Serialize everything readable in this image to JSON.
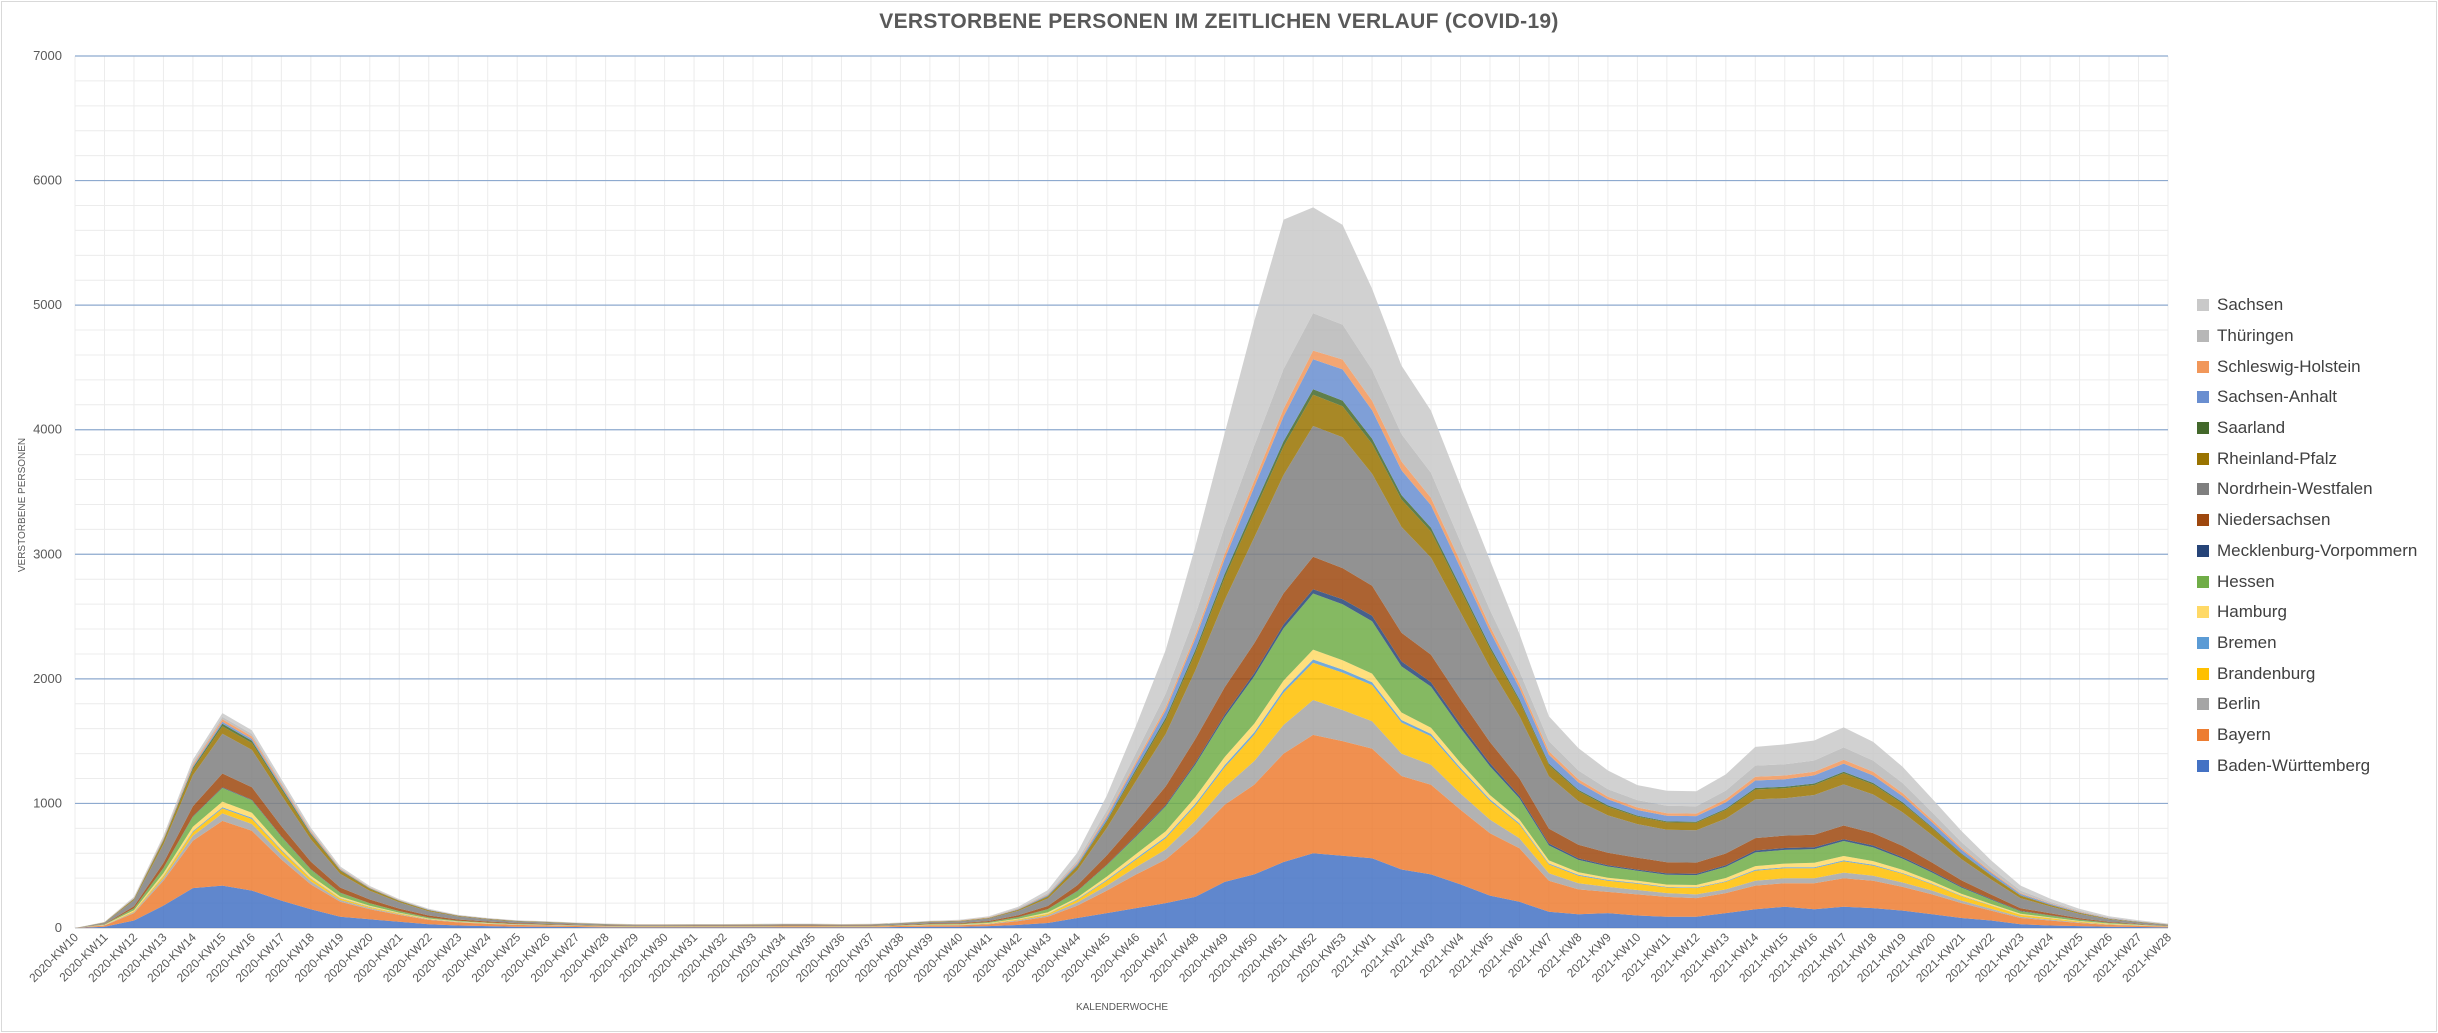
{
  "chart_data": {
    "type": "area",
    "stacked": true,
    "title": "VERSTORBENE PERSONEN IM ZEITLICHEN VERLAUF (COVID-19)",
    "xlabel": "KALENDERWOCHE",
    "ylabel": "VERSTORBENE PERSONEN",
    "ylim": [
      0,
      7000
    ],
    "yticks": [
      0,
      1000,
      2000,
      3000,
      4000,
      5000,
      6000,
      7000
    ],
    "grid": true,
    "legend_position": "right",
    "categories": [
      "2020-KW10",
      "2020-KW11",
      "2020-KW12",
      "2020-KW13",
      "2020-KW14",
      "2020-KW15",
      "2020-KW16",
      "2020-KW17",
      "2020-KW18",
      "2020-KW19",
      "2020-KW20",
      "2020-KW21",
      "2020-KW22",
      "2020-KW23",
      "2020-KW24",
      "2020-KW25",
      "2020-KW26",
      "2020-KW27",
      "2020-KW28",
      "2020-KW29",
      "2020-KW30",
      "2020-KW31",
      "2020-KW32",
      "2020-KW33",
      "2020-KW34",
      "2020-KW35",
      "2020-KW36",
      "2020-KW37",
      "2020-KW38",
      "2020-KW39",
      "2020-KW40",
      "2020-KW41",
      "2020-KW42",
      "2020-KW43",
      "2020-KW44",
      "2020-KW45",
      "2020-KW46",
      "2020-KW47",
      "2020-KW48",
      "2020-KW49",
      "2020-KW50",
      "2020-KW51",
      "2020-KW52",
      "2020-KW53",
      "2021-KW1",
      "2021-KW2",
      "2021-KW3",
      "2021-KW4",
      "2021-KW5",
      "2021-KW6",
      "2021-KW7",
      "2021-KW8",
      "2021-KW9",
      "2021-KW10",
      "2021-KW11",
      "2021-KW12",
      "2021-KW13",
      "2021-KW14",
      "2021-KW15",
      "2021-KW16",
      "2021-KW17",
      "2021-KW18",
      "2021-KW19",
      "2021-KW20",
      "2021-KW21",
      "2021-KW22",
      "2021-KW23",
      "2021-KW24",
      "2021-KW25",
      "2021-KW26",
      "2021-KW27",
      "2021-KW28"
    ],
    "series": [
      {
        "name": "Baden-Württemberg",
        "color": "#4472c4",
        "values": [
          0,
          10,
          60,
          180,
          320,
          340,
          300,
          220,
          150,
          90,
          70,
          50,
          30,
          20,
          15,
          10,
          10,
          8,
          5,
          5,
          5,
          5,
          5,
          5,
          5,
          5,
          5,
          5,
          8,
          10,
          10,
          15,
          25,
          40,
          80,
          120,
          160,
          200,
          250,
          370,
          430,
          530,
          600,
          580,
          560,
          470,
          430,
          350,
          260,
          210,
          130,
          110,
          120,
          100,
          90,
          90,
          120,
          150,
          170,
          150,
          170,
          160,
          140,
          110,
          80,
          60,
          30,
          20,
          15,
          10,
          8,
          5
        ]
      },
      {
        "name": "Bayern",
        "color": "#ed7d31",
        "values": [
          0,
          10,
          60,
          200,
          380,
          520,
          480,
          330,
          200,
          120,
          80,
          55,
          35,
          25,
          18,
          15,
          10,
          8,
          6,
          5,
          5,
          6,
          6,
          6,
          7,
          7,
          6,
          6,
          8,
          10,
          12,
          15,
          30,
          50,
          100,
          180,
          270,
          350,
          500,
          620,
          720,
          870,
          950,
          920,
          880,
          750,
          720,
          600,
          500,
          430,
          250,
          200,
          170,
          170,
          160,
          150,
          160,
          190,
          190,
          210,
          230,
          220,
          190,
          160,
          120,
          80,
          50,
          40,
          25,
          15,
          10,
          6
        ]
      },
      {
        "name": "Berlin",
        "color": "#a5a5a5",
        "values": [
          0,
          2,
          8,
          20,
          40,
          60,
          55,
          40,
          25,
          15,
          10,
          6,
          4,
          3,
          2,
          2,
          2,
          1,
          1,
          1,
          1,
          1,
          1,
          1,
          1,
          1,
          1,
          1,
          1,
          2,
          2,
          4,
          8,
          12,
          25,
          40,
          60,
          80,
          110,
          140,
          190,
          230,
          280,
          250,
          220,
          180,
          160,
          130,
          110,
          80,
          60,
          50,
          40,
          35,
          30,
          30,
          30,
          40,
          40,
          40,
          45,
          40,
          35,
          30,
          20,
          15,
          10,
          8,
          5,
          3,
          2,
          1
        ]
      },
      {
        "name": "Brandenburg",
        "color": "#ffc000",
        "values": [
          0,
          1,
          5,
          15,
          30,
          40,
          40,
          30,
          20,
          12,
          8,
          5,
          3,
          2,
          2,
          1,
          1,
          1,
          1,
          1,
          1,
          1,
          1,
          1,
          1,
          1,
          1,
          1,
          1,
          2,
          2,
          3,
          5,
          10,
          20,
          40,
          60,
          90,
          120,
          160,
          210,
          260,
          300,
          300,
          290,
          250,
          230,
          190,
          150,
          110,
          70,
          60,
          50,
          50,
          45,
          50,
          60,
          80,
          80,
          80,
          90,
          80,
          70,
          50,
          35,
          25,
          15,
          10,
          6,
          4,
          2,
          1
        ]
      },
      {
        "name": "Bremen",
        "color": "#5b9bd5",
        "values": [
          0,
          1,
          2,
          5,
          8,
          10,
          10,
          8,
          5,
          3,
          2,
          2,
          1,
          1,
          1,
          1,
          1,
          1,
          1,
          0,
          0,
          0,
          0,
          0,
          0,
          0,
          0,
          0,
          0,
          1,
          1,
          1,
          2,
          3,
          5,
          8,
          10,
          12,
          15,
          18,
          20,
          22,
          25,
          24,
          22,
          20,
          18,
          15,
          12,
          10,
          8,
          7,
          6,
          6,
          5,
          5,
          6,
          7,
          7,
          8,
          8,
          7,
          6,
          5,
          4,
          3,
          2,
          2,
          1,
          1,
          1,
          0
        ]
      },
      {
        "name": "Hamburg",
        "color": "#ffd966",
        "values": [
          0,
          2,
          8,
          20,
          35,
          45,
          40,
          30,
          20,
          12,
          8,
          5,
          3,
          2,
          2,
          1,
          1,
          1,
          1,
          1,
          1,
          1,
          1,
          1,
          1,
          1,
          1,
          1,
          1,
          2,
          2,
          3,
          5,
          10,
          15,
          25,
          35,
          45,
          55,
          65,
          70,
          75,
          80,
          75,
          70,
          60,
          50,
          40,
          35,
          30,
          25,
          20,
          18,
          18,
          18,
          20,
          25,
          30,
          30,
          35,
          35,
          30,
          25,
          20,
          15,
          10,
          8,
          5,
          4,
          3,
          2,
          1
        ]
      },
      {
        "name": "Hessen",
        "color": "#70ad47",
        "values": [
          0,
          3,
          15,
          40,
          80,
          110,
          100,
          75,
          50,
          30,
          20,
          12,
          8,
          5,
          4,
          3,
          3,
          2,
          2,
          2,
          2,
          2,
          2,
          2,
          2,
          2,
          2,
          2,
          3,
          4,
          4,
          6,
          12,
          25,
          50,
          90,
          140,
          200,
          260,
          320,
          380,
          420,
          450,
          450,
          420,
          370,
          330,
          280,
          230,
          170,
          120,
          100,
          90,
          80,
          80,
          80,
          90,
          110,
          110,
          110,
          120,
          110,
          90,
          70,
          50,
          35,
          20,
          15,
          10,
          6,
          4,
          2
        ]
      },
      {
        "name": "Mecklenburg-Vorpommern",
        "color": "#264478",
        "values": [
          0,
          0,
          1,
          2,
          4,
          5,
          5,
          4,
          3,
          2,
          1,
          1,
          1,
          0,
          0,
          0,
          0,
          0,
          0,
          0,
          0,
          0,
          0,
          0,
          0,
          0,
          0,
          0,
          0,
          0,
          0,
          1,
          1,
          2,
          3,
          5,
          8,
          10,
          15,
          20,
          25,
          30,
          35,
          40,
          45,
          40,
          35,
          30,
          25,
          20,
          15,
          12,
          10,
          10,
          10,
          10,
          12,
          15,
          15,
          15,
          15,
          15,
          12,
          10,
          8,
          6,
          4,
          3,
          2,
          1,
          1,
          0
        ]
      },
      {
        "name": "Niedersachsen",
        "color": "#9e480e",
        "values": [
          0,
          3,
          15,
          40,
          80,
          110,
          100,
          80,
          60,
          40,
          30,
          20,
          15,
          10,
          8,
          6,
          5,
          4,
          3,
          3,
          3,
          3,
          3,
          3,
          3,
          3,
          3,
          3,
          4,
          5,
          6,
          8,
          15,
          25,
          45,
          75,
          110,
          150,
          190,
          220,
          240,
          250,
          260,
          250,
          240,
          230,
          220,
          200,
          170,
          140,
          120,
          110,
          100,
          95,
          90,
          90,
          95,
          100,
          100,
          100,
          110,
          100,
          90,
          70,
          50,
          35,
          20,
          15,
          10,
          6,
          4,
          2
        ]
      },
      {
        "name": "Nordrhein-Westfalen",
        "color": "#7f7f7f",
        "values": [
          0,
          10,
          50,
          150,
          250,
          320,
          300,
          250,
          180,
          110,
          70,
          50,
          35,
          25,
          18,
          14,
          12,
          10,
          8,
          6,
          6,
          6,
          6,
          7,
          8,
          8,
          6,
          8,
          10,
          12,
          15,
          20,
          35,
          60,
          120,
          220,
          330,
          420,
          550,
          700,
          850,
          950,
          1050,
          1050,
          900,
          850,
          780,
          700,
          600,
          500,
          420,
          350,
          300,
          270,
          260,
          260,
          280,
          310,
          300,
          320,
          330,
          310,
          270,
          220,
          170,
          120,
          80,
          55,
          35,
          20,
          12,
          8
        ]
      },
      {
        "name": "Rheinland-Pfalz",
        "color": "#997300",
        "values": [
          0,
          2,
          8,
          25,
          45,
          60,
          55,
          45,
          35,
          25,
          15,
          10,
          7,
          5,
          4,
          3,
          3,
          2,
          2,
          2,
          2,
          2,
          2,
          2,
          2,
          2,
          2,
          2,
          2,
          3,
          3,
          4,
          8,
          15,
          30,
          50,
          80,
          110,
          140,
          180,
          210,
          230,
          250,
          250,
          240,
          220,
          210,
          180,
          150,
          120,
          90,
          80,
          70,
          60,
          60,
          60,
          70,
          80,
          80,
          80,
          90,
          80,
          70,
          55,
          40,
          30,
          20,
          12,
          8,
          5,
          3,
          2
        ]
      },
      {
        "name": "Saarland",
        "color": "#43682b",
        "values": [
          0,
          1,
          3,
          8,
          15,
          20,
          18,
          15,
          10,
          6,
          4,
          3,
          2,
          1,
          1,
          1,
          1,
          1,
          1,
          0,
          0,
          0,
          0,
          0,
          0,
          0,
          0,
          0,
          1,
          1,
          1,
          1,
          2,
          4,
          6,
          10,
          15,
          20,
          25,
          30,
          35,
          40,
          45,
          45,
          40,
          35,
          30,
          25,
          20,
          15,
          12,
          10,
          10,
          8,
          8,
          8,
          10,
          12,
          12,
          12,
          12,
          12,
          10,
          8,
          6,
          4,
          3,
          2,
          1,
          1,
          1,
          0
        ]
      },
      {
        "name": "Sachsen-Anhalt",
        "color": "#698ed0",
        "values": [
          0,
          0,
          2,
          5,
          10,
          15,
          15,
          12,
          8,
          5,
          3,
          2,
          2,
          1,
          1,
          1,
          1,
          1,
          1,
          1,
          1,
          1,
          1,
          1,
          1,
          1,
          1,
          1,
          1,
          1,
          1,
          2,
          4,
          8,
          15,
          25,
          40,
          60,
          90,
          120,
          160,
          200,
          240,
          250,
          230,
          200,
          180,
          150,
          120,
          90,
          70,
          60,
          50,
          45,
          45,
          45,
          50,
          60,
          60,
          65,
          65,
          60,
          50,
          40,
          30,
          20,
          12,
          8,
          5,
          3,
          2,
          1
        ]
      },
      {
        "name": "Schleswig-Holstein",
        "color": "#f1975a",
        "values": [
          0,
          1,
          3,
          8,
          15,
          20,
          20,
          15,
          10,
          6,
          4,
          3,
          2,
          1,
          1,
          1,
          1,
          1,
          1,
          1,
          1,
          1,
          1,
          1,
          1,
          1,
          1,
          1,
          1,
          1,
          1,
          2,
          3,
          5,
          10,
          15,
          20,
          25,
          30,
          40,
          50,
          60,
          70,
          80,
          75,
          70,
          60,
          50,
          40,
          35,
          30,
          25,
          20,
          20,
          20,
          20,
          25,
          30,
          30,
          30,
          30,
          30,
          25,
          20,
          15,
          10,
          6,
          4,
          3,
          2,
          1,
          1
        ]
      },
      {
        "name": "Thüringen",
        "color": "#b7b7b7",
        "values": [
          0,
          1,
          3,
          8,
          15,
          20,
          20,
          15,
          10,
          6,
          4,
          3,
          2,
          1,
          1,
          1,
          1,
          1,
          1,
          1,
          1,
          1,
          1,
          1,
          1,
          1,
          1,
          1,
          1,
          1,
          2,
          3,
          6,
          10,
          20,
          40,
          70,
          110,
          160,
          220,
          280,
          320,
          300,
          280,
          250,
          220,
          200,
          160,
          130,
          100,
          80,
          70,
          60,
          60,
          60,
          60,
          70,
          90,
          90,
          90,
          100,
          90,
          80,
          60,
          45,
          30,
          20,
          12,
          8,
          5,
          3,
          2
        ]
      },
      {
        "name": "Sachsen",
        "color": "#c9c9c9",
        "values": [
          0,
          2,
          8,
          15,
          25,
          30,
          30,
          25,
          18,
          12,
          8,
          5,
          4,
          3,
          2,
          2,
          2,
          2,
          2,
          2,
          2,
          2,
          2,
          2,
          2,
          2,
          2,
          2,
          2,
          3,
          4,
          6,
          10,
          25,
          60,
          120,
          220,
          350,
          550,
          750,
          1000,
          1200,
          850,
          800,
          650,
          550,
          500,
          450,
          400,
          300,
          200,
          180,
          150,
          120,
          120,
          120,
          130,
          150,
          160,
          160,
          160,
          150,
          130,
          110,
          90,
          60,
          40,
          25,
          15,
          10,
          6,
          4
        ]
      }
    ]
  }
}
